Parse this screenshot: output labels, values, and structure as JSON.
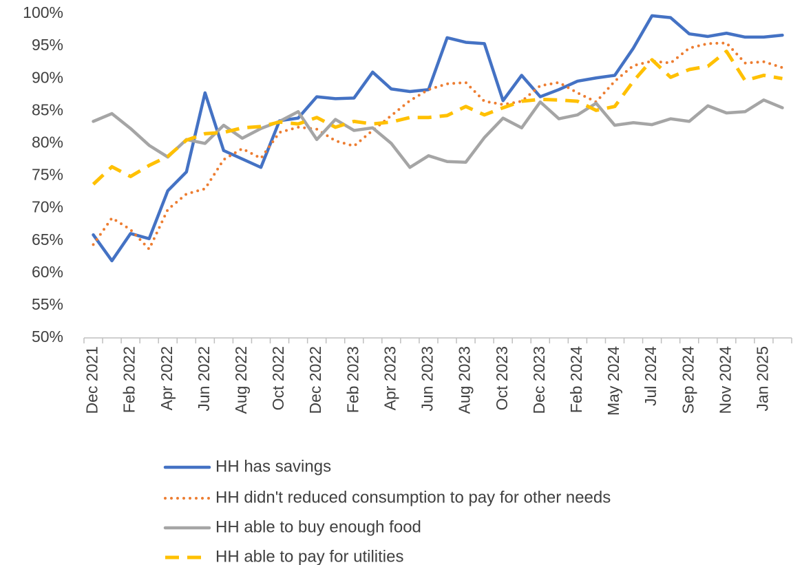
{
  "chart_data": {
    "type": "line",
    "categories": [
      "Dec 2021",
      null,
      "Feb 2022",
      null,
      "Apr 2022",
      null,
      "Jun 2022",
      null,
      "Aug 2022",
      null,
      "Oct 2022",
      null,
      "Dec 2022",
      null,
      "Feb 2023",
      null,
      "Apr 2023",
      null,
      "Jun 2023",
      null,
      "Aug 2023",
      null,
      "Oct 2023",
      null,
      "Dec 2023",
      null,
      "Feb 2024",
      null,
      "May 2024",
      null,
      "Jul 2024",
      null,
      "Sep 2024",
      null,
      "Nov 2024",
      null,
      "Jan 2025",
      null
    ],
    "series": [
      {
        "name": "HH has savings",
        "color": "#4472c4",
        "style": "solid",
        "values": [
          65.9,
          61.9,
          66.1,
          65.3,
          72.7,
          75.6,
          87.8,
          78.9,
          77.6,
          76.3,
          83.5,
          83.9,
          87.2,
          86.9,
          87.0,
          91.0,
          88.4,
          88.0,
          88.3,
          96.3,
          95.6,
          95.4,
          86.6,
          90.5,
          87.2,
          88.3,
          89.6,
          90.1,
          90.5,
          94.7,
          99.7,
          99.4,
          96.9,
          96.5,
          97.0,
          96.4,
          96.4,
          96.7
        ]
      },
      {
        "name": "HH didn't reduced consumption to pay for other needs",
        "color": "#ed7d31",
        "style": "dotted",
        "values": [
          64.4,
          68.5,
          66.7,
          63.7,
          69.8,
          72.2,
          73.0,
          77.5,
          79.2,
          77.7,
          81.7,
          82.5,
          82.2,
          80.4,
          79.6,
          82.0,
          84.3,
          86.6,
          88.3,
          89.2,
          89.4,
          86.5,
          86.0,
          86.5,
          88.9,
          89.4,
          87.8,
          86.4,
          89.6,
          92.0,
          92.7,
          92.4,
          94.7,
          95.4,
          95.5,
          92.4,
          92.6,
          91.7
        ]
      },
      {
        "name": "HH able to buy enough food",
        "color": "#a5a5a5",
        "style": "solid",
        "values": [
          83.4,
          84.6,
          82.3,
          79.7,
          77.9,
          80.6,
          80.0,
          82.8,
          80.8,
          82.3,
          83.4,
          84.9,
          80.6,
          83.7,
          82.0,
          82.4,
          80.0,
          76.3,
          78.1,
          77.2,
          77.1,
          80.9,
          83.9,
          82.4,
          86.4,
          83.8,
          84.4,
          86.2,
          82.8,
          83.2,
          82.9,
          83.8,
          83.4,
          85.8,
          84.7,
          84.9,
          86.7,
          85.5
        ]
      },
      {
        "name": "HH able to pay for utilities",
        "color": "#ffc000",
        "style": "dashed",
        "values": [
          73.7,
          76.4,
          74.9,
          76.6,
          78.0,
          80.5,
          81.5,
          81.7,
          82.4,
          82.6,
          83.3,
          83.0,
          84.0,
          82.5,
          83.4,
          83.0,
          83.3,
          84.0,
          84.0,
          84.3,
          85.7,
          84.4,
          85.5,
          86.5,
          86.8,
          86.7,
          86.5,
          85.1,
          85.7,
          89.6,
          92.9,
          90.2,
          91.4,
          91.9,
          94.2,
          89.7,
          90.5,
          90.0
        ]
      }
    ],
    "ylim": [
      50,
      100
    ],
    "yticks": [
      {
        "value": 50,
        "label": "50%"
      },
      {
        "value": 55,
        "label": "55%"
      },
      {
        "value": 60,
        "label": "60%"
      },
      {
        "value": 65,
        "label": "65%"
      },
      {
        "value": 70,
        "label": "70%"
      },
      {
        "value": 75,
        "label": "75%"
      },
      {
        "value": 80,
        "label": "80%"
      },
      {
        "value": 85,
        "label": "85%"
      },
      {
        "value": 90,
        "label": "90%"
      },
      {
        "value": 95,
        "label": "95%"
      },
      {
        "value": 100,
        "label": "100%"
      }
    ],
    "grid": false,
    "legend": "bottom"
  }
}
